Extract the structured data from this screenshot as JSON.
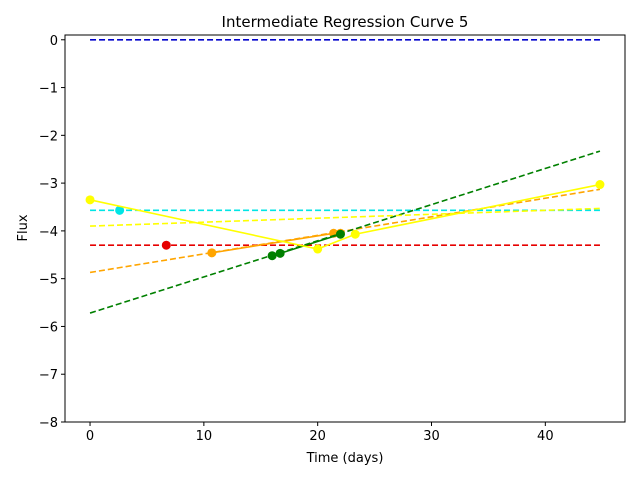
{
  "chart_data": {
    "type": "line",
    "title": "Intermediate Regression Curve 5",
    "xlabel": "Time (days)",
    "ylabel": "Flux",
    "xlim": [
      -2.2,
      47.0
    ],
    "ylim": [
      -8,
      0.1
    ],
    "xticks": [
      0,
      10,
      20,
      30,
      40
    ],
    "yticks": [
      0,
      -1,
      -2,
      -3,
      -4,
      -5,
      -6,
      -7,
      -8
    ],
    "xtick_labels": [
      "0",
      "10",
      "20",
      "30",
      "40"
    ],
    "ytick_labels": [
      "0",
      "−1",
      "−2",
      "−3",
      "−4",
      "−5",
      "−6",
      "−7",
      "−8"
    ],
    "grid": false,
    "series": [
      {
        "color": "#0000cc",
        "style": "dashed",
        "marker": false,
        "points": [
          [
            0,
            0
          ],
          [
            44.8,
            0
          ]
        ]
      },
      {
        "color": "#00e5e5",
        "style": "dashed",
        "marker": false,
        "points": [
          [
            0,
            -3.57
          ],
          [
            44.8,
            -3.57
          ]
        ]
      },
      {
        "color": "#00e5e5",
        "style": "none",
        "marker": true,
        "points": [
          [
            2.6,
            -3.57
          ]
        ]
      },
      {
        "color": "#e60000",
        "style": "dashed",
        "marker": false,
        "points": [
          [
            0,
            -4.3
          ],
          [
            44.8,
            -4.3
          ]
        ]
      },
      {
        "color": "#e60000",
        "style": "none",
        "marker": true,
        "points": [
          [
            6.7,
            -4.3
          ]
        ]
      },
      {
        "color": "#ffa500",
        "style": "dashed",
        "marker": false,
        "points": [
          [
            0,
            -4.87
          ],
          [
            44.8,
            -3.13
          ]
        ]
      },
      {
        "color": "#ffa500",
        "style": "solid",
        "marker": true,
        "points": [
          [
            10.7,
            -4.46
          ],
          [
            21.4,
            -4.05
          ],
          [
            22.0,
            -4.05
          ]
        ]
      },
      {
        "color": "#008000",
        "style": "dashed",
        "marker": false,
        "points": [
          [
            0,
            -5.72
          ],
          [
            44.8,
            -2.33
          ]
        ]
      },
      {
        "color": "#008000",
        "style": "solid",
        "marker": true,
        "points": [
          [
            16.0,
            -4.52
          ],
          [
            16.7,
            -4.47
          ],
          [
            22.0,
            -4.07
          ]
        ]
      },
      {
        "color": "#ffff00",
        "style": "dashed",
        "marker": false,
        "points": [
          [
            0,
            -3.9
          ],
          [
            44.8,
            -3.53
          ]
        ]
      },
      {
        "color": "#ffff00",
        "style": "solid",
        "marker": true,
        "points": [
          [
            0,
            -3.35
          ],
          [
            20.0,
            -4.38
          ],
          [
            23.3,
            -4.07
          ],
          [
            44.8,
            -3.03
          ]
        ]
      }
    ]
  }
}
